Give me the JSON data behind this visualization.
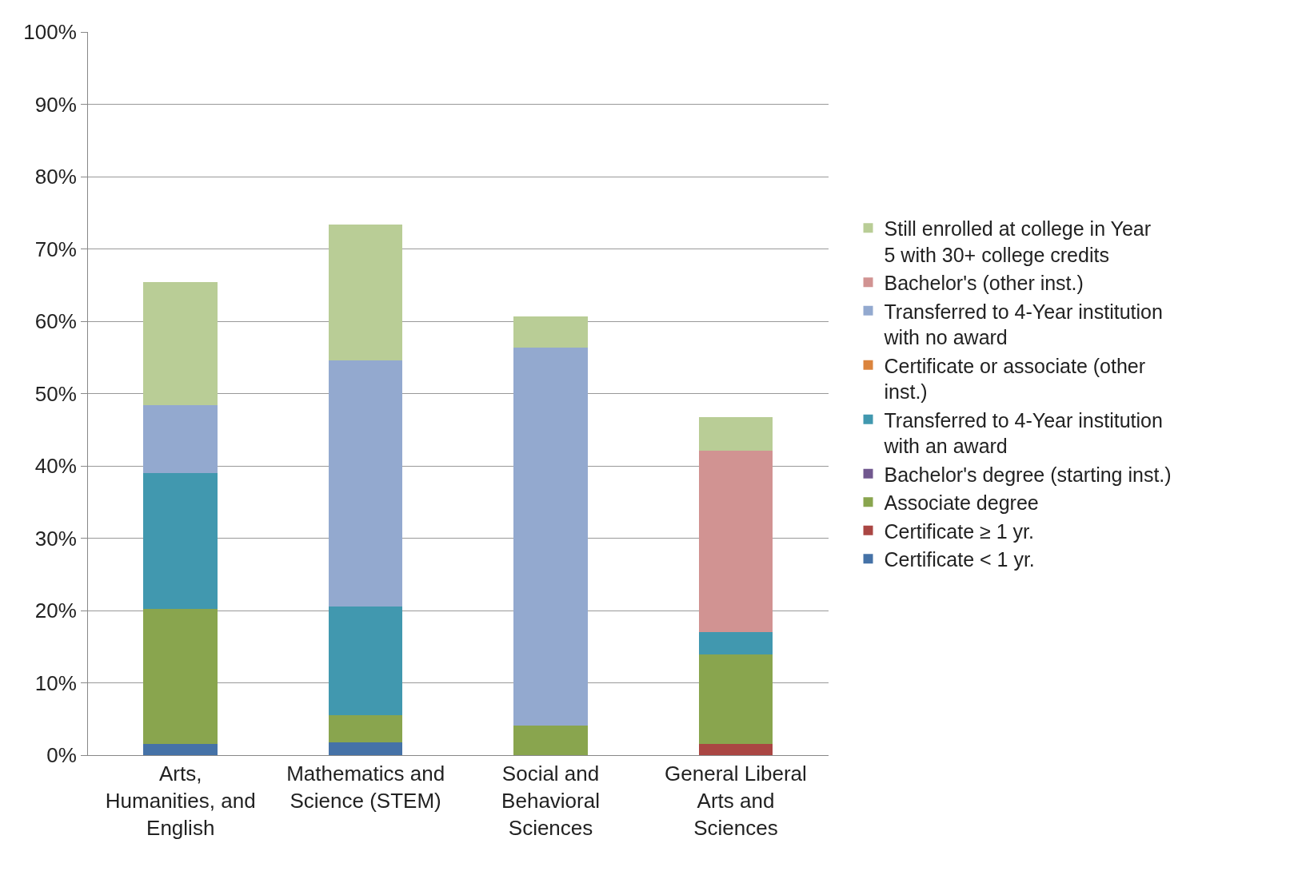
{
  "chart_data": {
    "type": "bar",
    "stacked": true,
    "categories": [
      "Arts, Humanities, and English",
      "Mathematics and Science (STEM)",
      "Social and Behavioral Sciences",
      "General Liberal Arts and Sciences"
    ],
    "series": [
      {
        "name": "Certificate < 1 yr.",
        "color": "#4572a7",
        "values": [
          1.5,
          1.8,
          0,
          0
        ]
      },
      {
        "name": "Certificate ≥ 1 yr.",
        "color": "#aa4643",
        "values": [
          0,
          0,
          0,
          1.5
        ]
      },
      {
        "name": "Associate degree",
        "color": "#89a54e",
        "values": [
          18.7,
          3.7,
          4.1,
          12.4
        ]
      },
      {
        "name": "Bachelor's degree (starting inst.)",
        "color": "#71588f",
        "values": [
          0,
          0,
          0,
          0
        ]
      },
      {
        "name": "Transferred to 4-Year institution with an award",
        "color": "#4198af",
        "values": [
          18.8,
          15.1,
          0,
          3.1
        ]
      },
      {
        "name": "Certificate or associate (other inst.)",
        "color": "#db843d",
        "values": [
          0,
          0,
          0,
          0
        ]
      },
      {
        "name": "Transferred to 4-Year institution with no award",
        "color": "#93a9cf",
        "values": [
          9.4,
          34.0,
          52.3,
          0
        ]
      },
      {
        "name": "Bachelor's (other inst.)",
        "color": "#d19392",
        "values": [
          0,
          0,
          0,
          25.1
        ]
      },
      {
        "name": "Still enrolled at college in Year 5 with 30+ college credits",
        "color": "#b9cd96",
        "values": [
          17.0,
          18.8,
          4.3,
          4.6
        ]
      }
    ],
    "ylim": [
      0,
      100
    ],
    "yticks": [
      {
        "value": 0,
        "label": "0%"
      },
      {
        "value": 10,
        "label": "10%"
      },
      {
        "value": 20,
        "label": "20%"
      },
      {
        "value": 30,
        "label": "30%"
      },
      {
        "value": 40,
        "label": "40%"
      },
      {
        "value": 50,
        "label": "50%"
      },
      {
        "value": 60,
        "label": "60%"
      },
      {
        "value": 70,
        "label": "70%"
      },
      {
        "value": 80,
        "label": "80%"
      },
      {
        "value": 90,
        "label": "90%"
      },
      {
        "value": 100,
        "label": "100%"
      }
    ],
    "grid": "y",
    "legend": "right"
  }
}
